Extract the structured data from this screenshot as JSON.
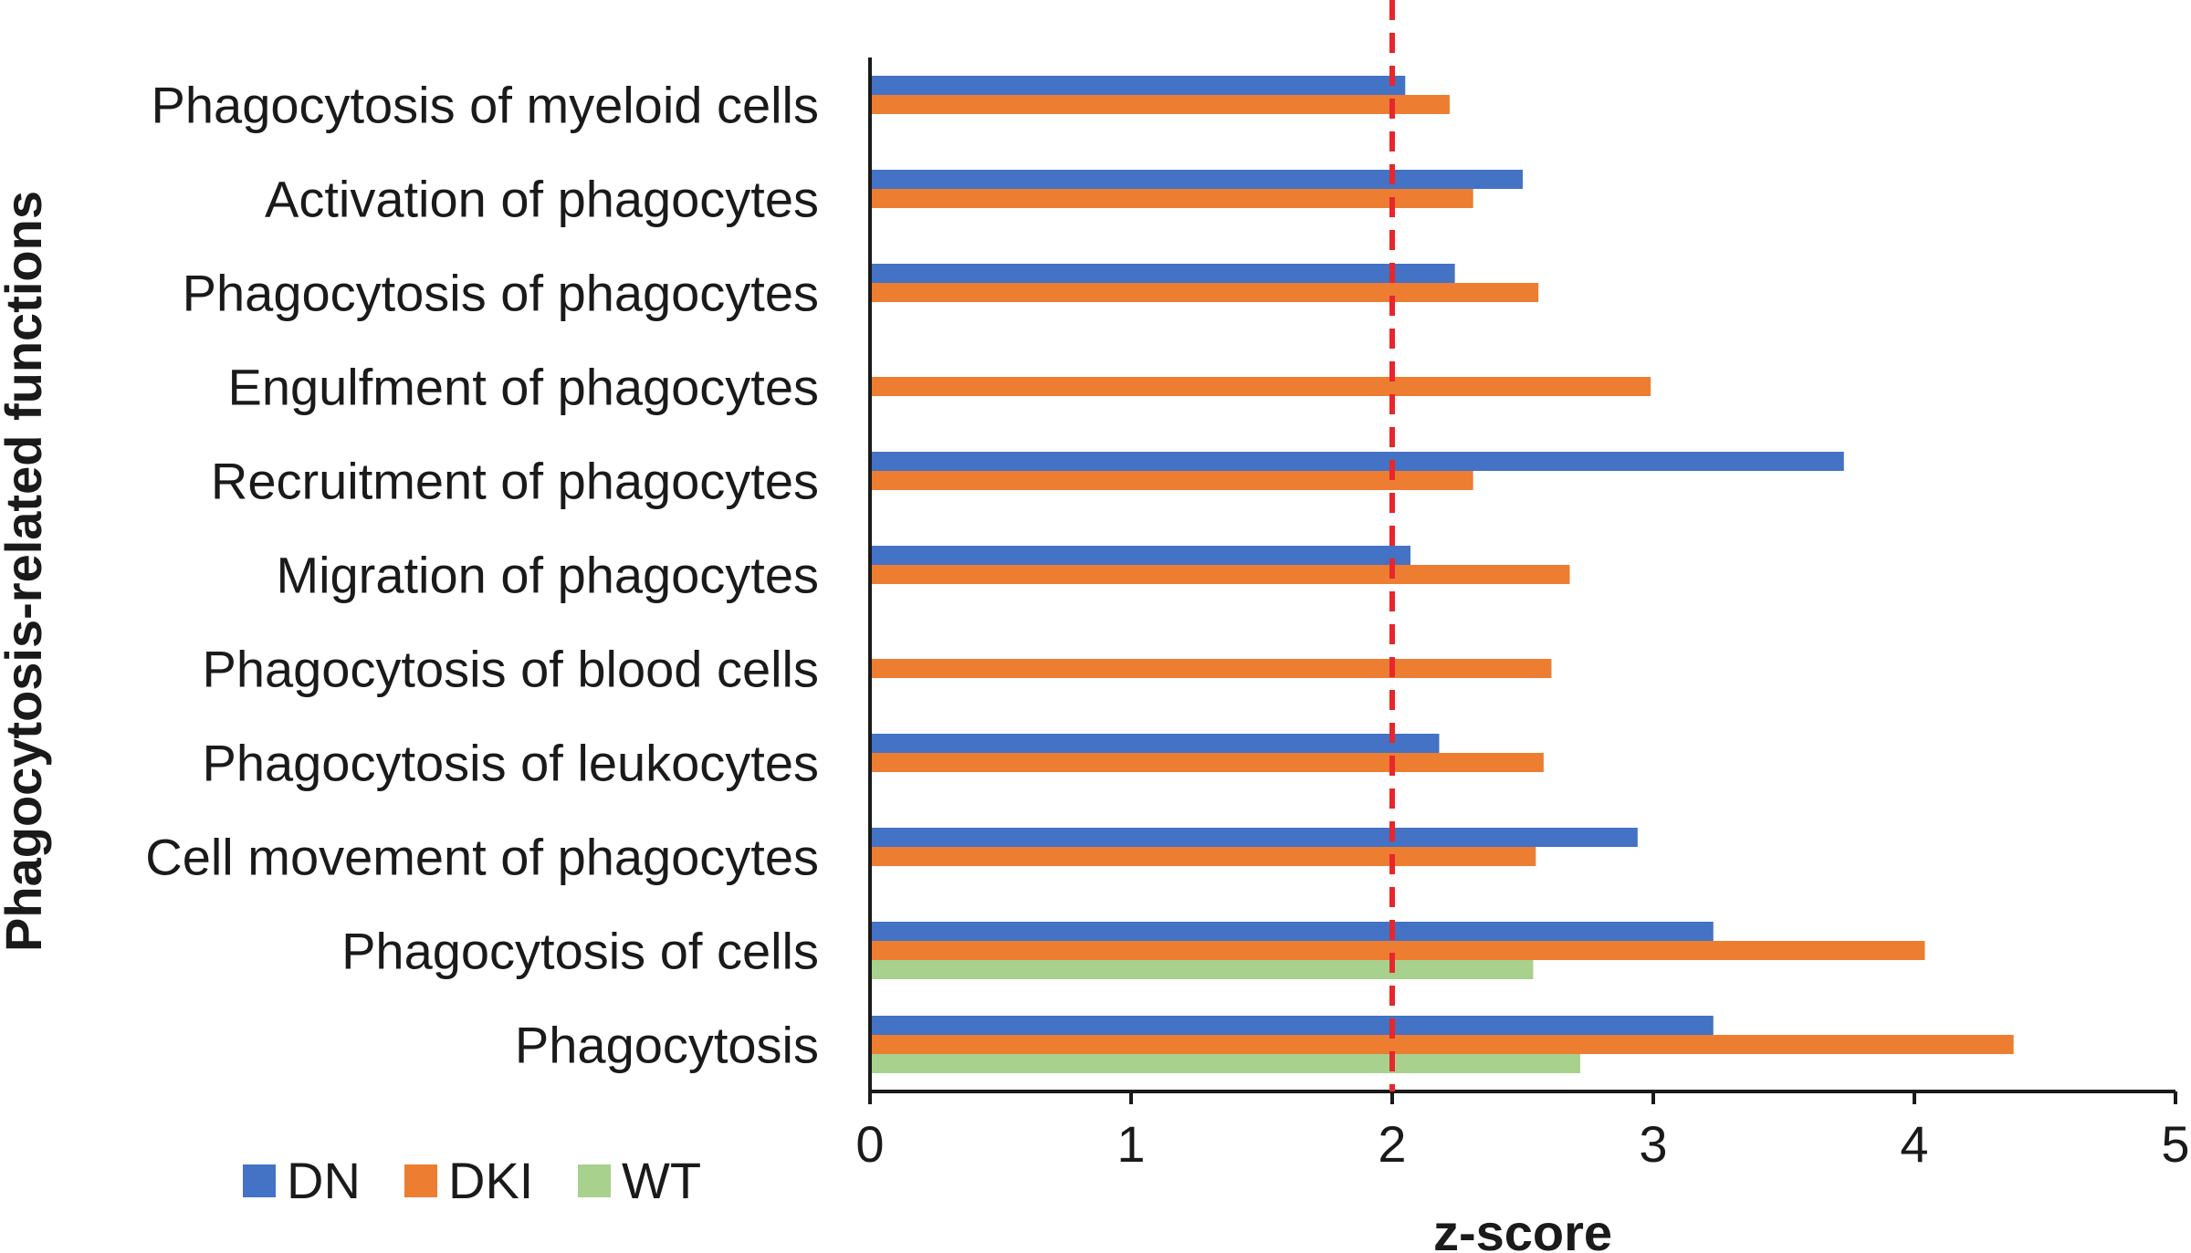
{
  "chart_data": {
    "type": "bar",
    "orientation": "horizontal",
    "title": "",
    "xlabel": "z-score",
    "ylabel": "Phagocytosis-related functions",
    "xlim": [
      0,
      5
    ],
    "x_ticks": [
      "0",
      "1",
      "2",
      "3",
      "4",
      "5"
    ],
    "threshold_line": {
      "value": 2,
      "color": "#e8262b",
      "style": "dashed"
    },
    "grid": false,
    "legend_position": "bottom-left",
    "categories": [
      "Phagocytosis of myeloid cells",
      "Activation of phagocytes",
      "Phagocytosis of phagocytes",
      "Engulfment of phagocytes",
      "Recruitment of phagocytes",
      "Migration of phagocytes",
      "Phagocytosis of blood cells",
      "Phagocytosis of leukocytes",
      "Cell movement of phagocytes",
      "Phagocytosis of cells",
      "Phagocytosis"
    ],
    "series": [
      {
        "name": "DN",
        "color": "#4472c4",
        "values": [
          2.05,
          2.5,
          2.24,
          null,
          3.73,
          2.07,
          null,
          2.18,
          2.94,
          3.23,
          3.23
        ]
      },
      {
        "name": "DKI",
        "color": "#ed7d31",
        "values": [
          2.22,
          2.31,
          2.56,
          2.99,
          2.31,
          2.68,
          2.61,
          2.58,
          2.55,
          4.04,
          4.38
        ]
      },
      {
        "name": "WT",
        "color": "#a9d18e",
        "values": [
          null,
          null,
          null,
          null,
          null,
          null,
          null,
          null,
          null,
          2.54,
          2.72
        ]
      }
    ]
  }
}
